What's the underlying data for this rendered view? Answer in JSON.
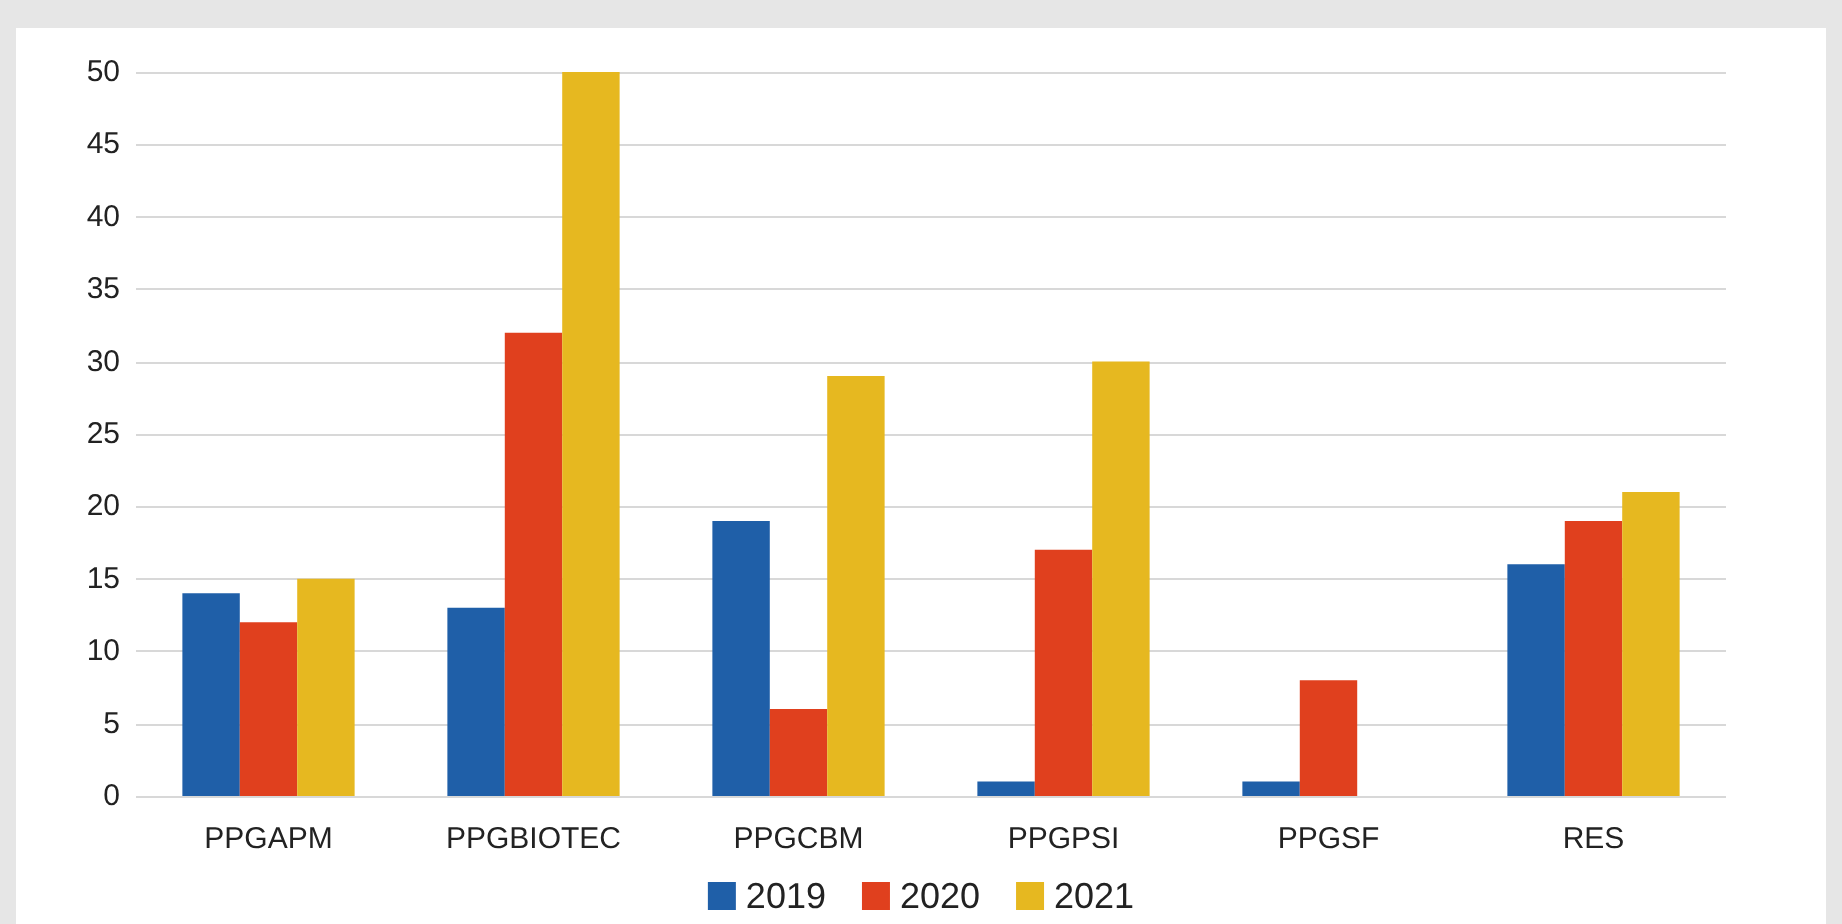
{
  "chart_data": {
    "type": "bar",
    "categories": [
      "PPGAPM",
      "PPGBIOTEC",
      "PPGCBM",
      "PPGPSI",
      "PPGSF",
      "RES"
    ],
    "series": [
      {
        "name": "2019",
        "color": "#1f5fa8",
        "values": [
          14,
          13,
          19,
          1,
          1,
          16
        ]
      },
      {
        "name": "2020",
        "color": "#e0401e",
        "values": [
          12,
          32,
          6,
          17,
          8,
          19
        ]
      },
      {
        "name": "2021",
        "color": "#e6b820",
        "values": [
          15,
          50,
          29,
          30,
          0,
          21
        ]
      }
    ],
    "ylim": [
      0,
      50
    ],
    "yticks": [
      0,
      5,
      10,
      15,
      20,
      25,
      30,
      35,
      40,
      45,
      50
    ],
    "grid": "y",
    "legend": "bottom"
  }
}
